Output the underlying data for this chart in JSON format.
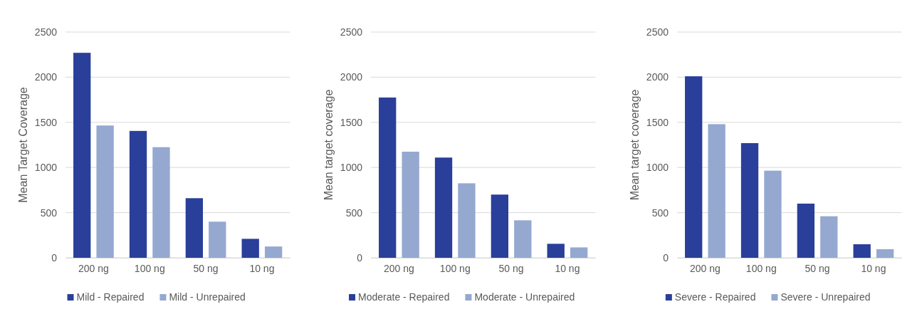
{
  "chart_data": [
    {
      "type": "bar",
      "ylabel": "Mean Target Coverage",
      "categories": [
        "200 ng",
        "100 ng",
        "50 ng",
        "10 ng"
      ],
      "ylim": [
        0,
        2500
      ],
      "yticks": [
        0,
        500,
        1000,
        1500,
        2000,
        2500
      ],
      "grid": "y",
      "legend": "bottom",
      "series": [
        {
          "name": "Mild - Repaired",
          "color": "#2a3f9a",
          "values": [
            2270,
            1405,
            660,
            210
          ]
        },
        {
          "name": "Mild - Unrepaired",
          "color": "#95a8d0",
          "values": [
            1465,
            1225,
            400,
            125
          ]
        }
      ]
    },
    {
      "type": "bar",
      "ylabel": "Mean target coverage",
      "categories": [
        "200 ng",
        "100 ng",
        "50 ng",
        "10 ng"
      ],
      "ylim": [
        0,
        2500
      ],
      "yticks": [
        0,
        500,
        1000,
        1500,
        2000,
        2500
      ],
      "grid": "y",
      "legend": "bottom",
      "series": [
        {
          "name": "Moderate - Repaired",
          "color": "#2a3f9a",
          "values": [
            1775,
            1110,
            700,
            155
          ]
        },
        {
          "name": "Moderate - Unrepaired",
          "color": "#95a8d0",
          "values": [
            1175,
            825,
            415,
            115
          ]
        }
      ]
    },
    {
      "type": "bar",
      "ylabel": "Mean target coverage",
      "categories": [
        "200 ng",
        "100 ng",
        "50 ng",
        "10 ng"
      ],
      "ylim": [
        0,
        2500
      ],
      "yticks": [
        0,
        500,
        1000,
        1500,
        2000,
        2500
      ],
      "grid": "y",
      "legend": "bottom",
      "series": [
        {
          "name": "Severe - Repaired",
          "color": "#2a3f9a",
          "values": [
            2010,
            1270,
            600,
            150
          ]
        },
        {
          "name": "Severe - Unrepaired",
          "color": "#95a8d0",
          "values": [
            1480,
            965,
            460,
            95
          ]
        }
      ]
    }
  ]
}
